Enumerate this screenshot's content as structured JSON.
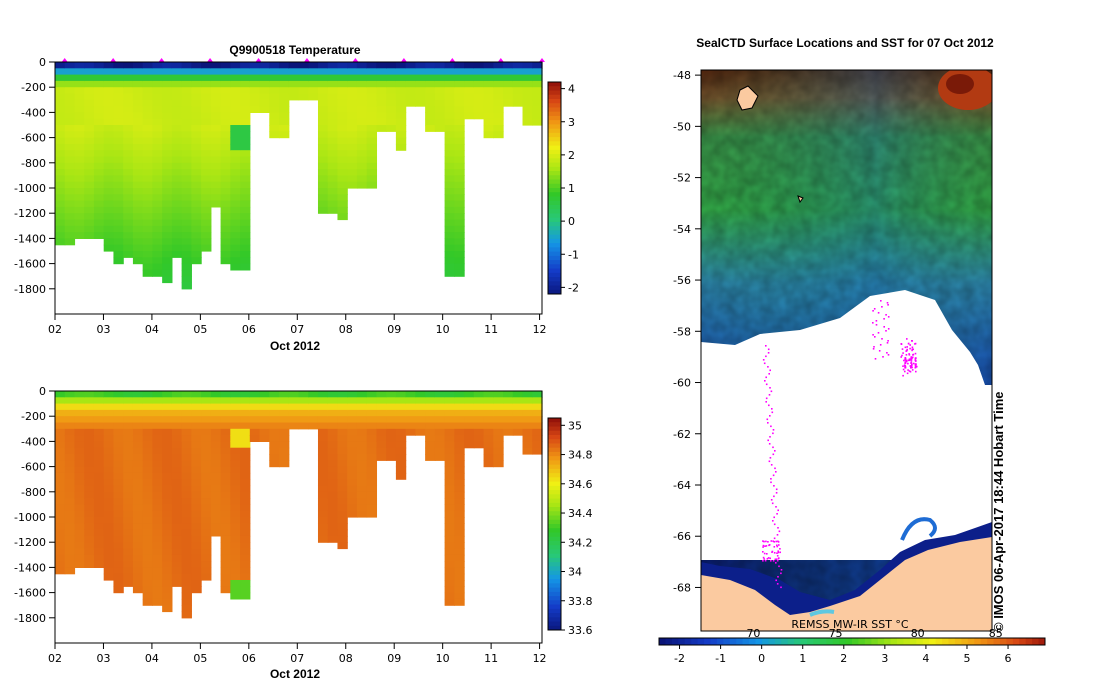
{
  "chart_data": [
    {
      "type": "heatmap",
      "title": "Q9900518  Temperature",
      "xlabel": "Oct 2012",
      "x_ticks": [
        "02",
        "03",
        "04",
        "05",
        "06",
        "07",
        "08",
        "09",
        "10",
        "11",
        "12"
      ],
      "y_ticks": [
        "0",
        "-200",
        "-400",
        "-600",
        "-800",
        "-1000",
        "-1200",
        "-1400",
        "-1600",
        "-1800"
      ],
      "xlim": [
        2,
        12.05
      ],
      "ylim": [
        -2000,
        0
      ],
      "colorbar_ticks": [
        "4",
        "3",
        "2",
        "1",
        "0",
        "-1",
        "-2"
      ],
      "colorbar_range": [
        -2.2,
        4.2
      ],
      "profile_depths": [
        -1420,
        -1420,
        -1400,
        -1380,
        -1390,
        -1460,
        -1570,
        -1510,
        -1580,
        -1700,
        -1700,
        -1710,
        -1530,
        -1800,
        -1580,
        -1480,
        -1140,
        -1590,
        -1620,
        -1640,
        -380,
        -380,
        -600,
        -600,
        -290,
        -290,
        -290,
        -1170,
        -1180,
        -1240,
        -990,
        -990,
        -990,
        -510,
        -510,
        -680,
        -330,
        -330,
        -520,
        -520,
        -1660,
        -1680,
        -420,
        -420,
        -560,
        -570,
        -340,
        -340,
        -480,
        -480
      ],
      "surface_markers_days": [
        2.2,
        3.2,
        4.2,
        5.2,
        6.2,
        7.2,
        8.2,
        9.2,
        10.2,
        11.2,
        12.05
      ]
    },
    {
      "type": "heatmap",
      "title": "",
      "xlabel": "Oct 2012",
      "x_ticks": [
        "02",
        "03",
        "04",
        "05",
        "06",
        "07",
        "08",
        "09",
        "10",
        "11",
        "12"
      ],
      "y_ticks": [
        "0",
        "-200",
        "-400",
        "-600",
        "-800",
        "-1000",
        "-1200",
        "-1400",
        "-1600",
        "-1800"
      ],
      "xlim": [
        2,
        12.05
      ],
      "ylim": [
        -2000,
        0
      ],
      "colorbar_ticks": [
        "35",
        "34.8",
        "34.6",
        "34.4",
        "34.2",
        "34",
        "33.8",
        "33.6"
      ],
      "colorbar_range": [
        33.6,
        35.05
      ]
    },
    {
      "type": "heatmap",
      "title": "SealCTD Surface Locations and SST for 07 Oct 2012",
      "y_ticks": [
        "-48",
        "-50",
        "-52",
        "-54",
        "-56",
        "-58",
        "-60",
        "-62",
        "-64",
        "-66",
        "-68"
      ],
      "ylim": [
        -69.7,
        -47.8
      ],
      "colorbar_label": "REMSS MW-IR SST °C",
      "colorbar_ticks": [
        "-2",
        "-1",
        "0",
        "1",
        "2",
        "3",
        "4",
        "5",
        "6"
      ],
      "colorbar_overlay_ticks": [
        "70",
        "75",
        "80",
        "85"
      ],
      "colorbar_range": [
        -2.5,
        6.9
      ],
      "watermark": "© IMOS 06-Apr-2017 18:44 Hobart Time"
    }
  ],
  "colors": {
    "ice_white": "#ffffff",
    "land": "#fbcaa0",
    "track": "#ff00ff",
    "frame": "#000000"
  }
}
